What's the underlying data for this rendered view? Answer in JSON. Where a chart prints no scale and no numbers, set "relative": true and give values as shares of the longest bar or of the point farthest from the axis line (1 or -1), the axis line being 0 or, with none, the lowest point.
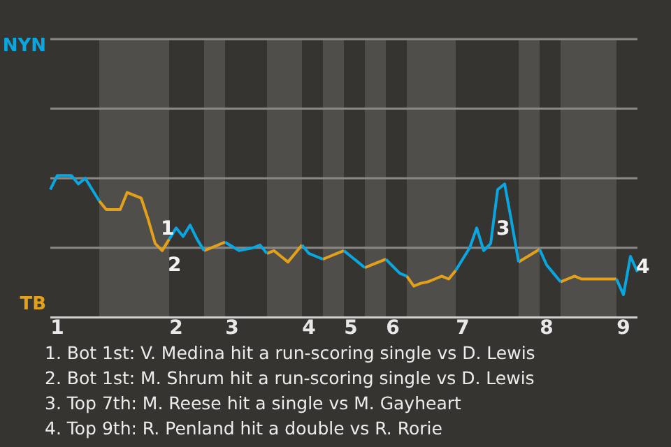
{
  "chart_data": {
    "type": "line",
    "relative": true,
    "categories": [
      null,
      "1",
      null,
      null,
      null,
      null,
      null,
      null,
      null,
      null,
      null,
      null,
      null,
      null,
      null,
      null,
      null,
      null,
      "2",
      null,
      null,
      null,
      null,
      null,
      null,
      null,
      "3",
      null,
      null,
      null,
      null,
      null,
      null,
      null,
      null,
      null,
      null,
      "4",
      null,
      null,
      null,
      null,
      null,
      "5",
      null,
      null,
      null,
      null,
      null,
      "6",
      null,
      null,
      null,
      null,
      null,
      null,
      null,
      null,
      null,
      "7",
      null,
      null,
      null,
      null,
      null,
      null,
      null,
      null,
      null,
      null,
      null,
      "8",
      null,
      null,
      null,
      null,
      null,
      null,
      null,
      null,
      null,
      null,
      "9",
      null,
      null
    ],
    "series": [
      {
        "name": "NYN",
        "color": "#0aa6e0",
        "values": [
          0.9,
          1,
          1,
          1,
          0.94,
          0.98,
          0.9,
          0.82,
          null,
          null,
          null,
          null,
          null,
          null,
          null,
          null,
          null,
          0.55,
          0.63,
          0.57,
          0.65,
          0.55,
          0.47,
          null,
          null,
          0.53,
          0.5,
          0.47,
          0.48,
          0.49,
          0.51,
          0.45,
          null,
          null,
          null,
          null,
          0.51,
          0.45,
          0.43,
          0.41,
          null,
          null,
          0.47,
          0.43,
          0.39,
          0.35,
          null,
          null,
          0.41,
          0.36,
          0.31,
          0.29,
          null,
          null,
          null,
          null,
          null,
          null,
          0.33,
          0.41,
          0.49,
          0.63,
          0.47,
          0.52,
          0.9,
          0.94,
          0.67,
          0.39,
          null,
          null,
          0.48,
          0.37,
          0.31,
          0.25,
          null,
          null,
          null,
          null,
          null,
          null,
          null,
          0.27,
          0.16,
          0.43,
          0.32
        ]
      },
      {
        "name": "TB",
        "color": "#e3a11a",
        "values": [
          null,
          null,
          null,
          null,
          null,
          null,
          null,
          0.82,
          0.76,
          0.76,
          0.76,
          0.88,
          0.86,
          0.84,
          0.69,
          0.52,
          0.47,
          0.55,
          null,
          null,
          null,
          null,
          0.47,
          0.49,
          0.51,
          0.53,
          null,
          null,
          null,
          null,
          null,
          0.45,
          0.47,
          0.43,
          0.39,
          0.45,
          0.51,
          null,
          null,
          0.41,
          0.43,
          0.45,
          0.47,
          null,
          null,
          0.35,
          0.37,
          0.39,
          0.41,
          null,
          null,
          0.29,
          0.22,
          0.24,
          0.25,
          0.27,
          0.29,
          0.27,
          0.33,
          null,
          null,
          null,
          null,
          null,
          null,
          null,
          null,
          0.39,
          0.42,
          0.45,
          0.48,
          null,
          null,
          0.25,
          0.27,
          0.29,
          0.27,
          0.27,
          0.27,
          0.27,
          0.27,
          0.27,
          null,
          null,
          null
        ]
      }
    ],
    "ref_lines": [
      {
        "axis": "y",
        "value": 0.49,
        "color": "#8a8885"
      },
      {
        "axis": "y",
        "value": 0.98,
        "color": "#8a8885"
      },
      {
        "axis": "y",
        "value": 1.47,
        "color": "#8a8885"
      },
      {
        "axis": "y",
        "value": 1.96,
        "color": "#8a8885"
      }
    ],
    "legend": "left",
    "marker": "none",
    "line_style": "solid",
    "annotations": [
      {
        "text": "1",
        "y": 0.52
      },
      {
        "text": "2",
        "y": 0.47
      },
      {
        "text": "3",
        "y": 0.52
      },
      {
        "text": "4",
        "y": 0.32
      },
      "1. Bot 1st: V. Medina hit a run-scoring single vs D. Lewis",
      "2. Bot 1st: M. Shrum hit a run-scoring single vs D. Lewis",
      "3. Top 7th: M. Reese hit a single vs M. Gayheart",
      "4. Top 9th: R. Penland hit a double vs R. Rorie"
    ]
  }
}
